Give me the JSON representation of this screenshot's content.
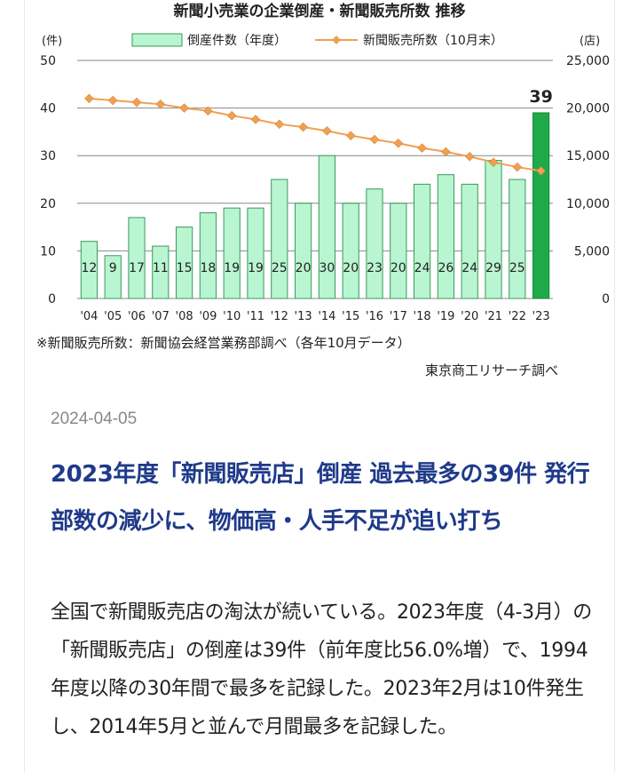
{
  "article": {
    "date": "2024-04-05",
    "headline": "2023年度「新聞販売店」倒産 過去最多の39件 発行部数の減少に、物価高・人手不足が追い打ち",
    "body": "全国で新聞販売店の淘汰が続いている。2023年度（4‐3月）の「新聞販売店」の倒産は39件（前年度比56.0%増）で、1994年度以降の30年間で最多を記録した。2023年2月は10件発生し、2014年5月と並んで月間最多を記録した。"
  },
  "chart_data": {
    "type": "bar+line",
    "title": "新聞小売業の企業倒産・新聞販売所数 推移",
    "y_left_unit": "(件)",
    "y_right_unit": "(店)",
    "y_left_range": [
      0,
      50
    ],
    "y_right_range": [
      0,
      25000
    ],
    "y_left_ticks": [
      "0",
      "10",
      "20",
      "30",
      "40",
      "50"
    ],
    "y_right_ticks": [
      "0",
      "5,000",
      "10,000",
      "15,000",
      "20,000",
      "25,000"
    ],
    "categories": [
      "'04",
      "'05",
      "'06",
      "'07",
      "'08",
      "'09",
      "'10",
      "'11",
      "'12",
      "'13",
      "'14",
      "'15",
      "'16",
      "'17",
      "'18",
      "'19",
      "'20",
      "'21",
      "'22",
      "'23"
    ],
    "series": [
      {
        "name": "倒産件数（年度）",
        "axis": "left",
        "values": [
          12,
          9,
          17,
          11,
          15,
          18,
          19,
          19,
          25,
          20,
          30,
          20,
          23,
          20,
          24,
          26,
          24,
          29,
          25,
          39
        ],
        "labels": [
          "12",
          "9",
          "17",
          "11",
          "15",
          "18",
          "19",
          "19",
          "25",
          "20",
          "30",
          "20",
          "23",
          "20",
          "24",
          "26",
          "24",
          "29",
          "25",
          "39"
        ],
        "color": "#b8f5d0",
        "highlight_color": "#1faa4a"
      },
      {
        "name": "新聞販売所数（10月末）",
        "axis": "right",
        "values": [
          21000,
          20800,
          20600,
          20400,
          20000,
          19700,
          19200,
          18800,
          18300,
          18000,
          17600,
          17100,
          16700,
          16300,
          15800,
          15400,
          14900,
          14300,
          13800,
          13400
        ],
        "color": "#f0a050"
      }
    ],
    "grid": true,
    "legend": "top",
    "footnote": "※新聞販売所数：新聞協会経営業務部調べ（各年10月データ）",
    "source": "東京商工リサーチ調べ"
  }
}
